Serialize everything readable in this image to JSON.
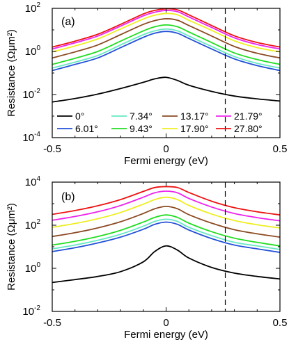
{
  "chart_data": [
    {
      "type": "line",
      "panel_label": "(a)",
      "xlabel": "Fermi energy (eV)",
      "ylabel": "Resistance (Ωμm²)",
      "xlim": [
        -0.5,
        0.5
      ],
      "ylim_log10": [
        -4,
        2
      ],
      "y_scale": "log",
      "x_ticks": [
        -0.5,
        0,
        0.5
      ],
      "x_tick_labels": [
        "-0.5",
        "0",
        "0.5"
      ],
      "y_ticks_log10": [
        -4,
        -2,
        0,
        2
      ],
      "y_tick_labels": [
        {
          "base": "10",
          "exp": "-4"
        },
        {
          "base": "10",
          "exp": "-2"
        },
        {
          "base": "10",
          "exp": "0"
        },
        {
          "base": "10",
          "exp": "2"
        }
      ],
      "reference_line": {
        "x": 0.26,
        "style": "dashed"
      },
      "legend_position": "lower-center",
      "x": [
        -0.5,
        -0.4,
        -0.3,
        -0.2,
        -0.1,
        -0.05,
        0,
        0.05,
        0.1,
        0.2,
        0.3,
        0.4,
        0.5
      ],
      "series": [
        {
          "name": "0°",
          "color": "#000000",
          "values": [
            0.0045,
            0.0065,
            0.0105,
            0.019,
            0.037,
            0.053,
            0.063,
            0.045,
            0.027,
            0.014,
            0.0085,
            0.0063,
            0.005
          ]
        },
        {
          "name": "6.01°",
          "color": "#2450d8",
          "values": [
            0.13,
            0.25,
            0.5,
            1.5,
            4.5,
            7.0,
            8.5,
            7.0,
            4.0,
            1.3,
            0.45,
            0.22,
            0.13
          ]
        },
        {
          "name": "7.34°",
          "color": "#66e8c0",
          "values": [
            0.17,
            0.32,
            0.65,
            2.0,
            6.0,
            9.0,
            11.0,
            9.0,
            5.2,
            1.7,
            0.58,
            0.28,
            0.17
          ]
        },
        {
          "name": "9.43°",
          "color": "#22dd22",
          "values": [
            0.25,
            0.48,
            1.0,
            3.0,
            9.0,
            14.0,
            17.0,
            14.0,
            8.0,
            2.6,
            0.85,
            0.42,
            0.25
          ]
        },
        {
          "name": "13.17°",
          "color": "#8b4a22",
          "values": [
            0.5,
            0.95,
            2.0,
            6.0,
            18.0,
            27.0,
            33.0,
            28.0,
            16.0,
            5.2,
            1.7,
            0.82,
            0.5
          ]
        },
        {
          "name": "17.90°",
          "color": "#eeee22",
          "values": [
            0.95,
            1.8,
            3.8,
            11.0,
            32.0,
            48.0,
            58.0,
            50.0,
            28.0,
            9.5,
            3.1,
            1.5,
            0.95
          ]
        },
        {
          "name": "21.79°",
          "color": "#ee22ee",
          "values": [
            1.3,
            2.5,
            5.2,
            15.0,
            45.0,
            66.0,
            80.0,
            70.0,
            40.0,
            13.0,
            4.3,
            2.1,
            1.3
          ]
        },
        {
          "name": "27.80°",
          "color": "#ee1111",
          "values": [
            1.6,
            3.0,
            6.3,
            18.0,
            55.0,
            80.0,
            95.0,
            85.0,
            50.0,
            16.0,
            5.3,
            2.6,
            1.6
          ]
        }
      ]
    },
    {
      "type": "line",
      "panel_label": "(b)",
      "xlabel": "Fermi energy (eV)",
      "ylabel": "Resistance (Ωμm²)",
      "xlim": [
        -0.5,
        0.5
      ],
      "ylim_log10": [
        -2,
        4
      ],
      "y_scale": "log",
      "x_ticks": [
        -0.5,
        0,
        0.5
      ],
      "x_tick_labels": [
        "-0.5",
        "0",
        "0.5"
      ],
      "y_ticks_log10": [
        -2,
        0,
        2,
        4
      ],
      "y_tick_labels": [
        {
          "base": "10",
          "exp": "-2"
        },
        {
          "base": "10",
          "exp": "0"
        },
        {
          "base": "10",
          "exp": "2"
        },
        {
          "base": "10",
          "exp": "4"
        }
      ],
      "reference_line": {
        "x": 0.26,
        "style": "dashed"
      },
      "x": [
        -0.5,
        -0.4,
        -0.3,
        -0.2,
        -0.1,
        -0.05,
        0,
        0.05,
        0.1,
        0.2,
        0.3,
        0.4,
        0.5
      ],
      "series": [
        {
          "name": "0°",
          "color": "#000000",
          "values": [
            0.22,
            0.3,
            0.42,
            0.7,
            2.0,
            6.0,
            11.0,
            7.0,
            3.0,
            1.1,
            0.6,
            0.42,
            0.32
          ]
        },
        {
          "name": "6.01°",
          "color": "#2450d8",
          "values": [
            6.0,
            9.0,
            15.0,
            28.0,
            65.0,
            110.0,
            140.0,
            110.0,
            60.0,
            24.0,
            12.0,
            8.0,
            5.5
          ]
        },
        {
          "name": "7.34°",
          "color": "#66e8c0",
          "values": [
            8.0,
            12.0,
            20.0,
            38.0,
            90.0,
            150.0,
            190.0,
            150.0,
            80.0,
            33.0,
            16.0,
            11.0,
            7.5
          ]
        },
        {
          "name": "9.43°",
          "color": "#22dd22",
          "values": [
            12.0,
            18.0,
            30.0,
            58.0,
            140.0,
            230.0,
            300.0,
            230.0,
            125.0,
            50.0,
            25.0,
            16.0,
            11.0
          ]
        },
        {
          "name": "13.17°",
          "color": "#8b4a22",
          "values": [
            30.0,
            45.0,
            75.0,
            145.0,
            350.0,
            580.0,
            750.0,
            580.0,
            310.0,
            125.0,
            62.0,
            40.0,
            28.0
          ]
        },
        {
          "name": "17.90°",
          "color": "#eeee22",
          "values": [
            80.0,
            120.0,
            200.0,
            390.0,
            950.0,
            1550.0,
            2000.0,
            1550.0,
            830.0,
            330.0,
            165.0,
            105.0,
            75.0
          ]
        },
        {
          "name": "21.79°",
          "color": "#ee22ee",
          "values": [
            170.0,
            255.0,
            420.0,
            820.0,
            2000.0,
            3200.0,
            3800.0,
            3200.0,
            1750.0,
            700.0,
            350.0,
            225.0,
            160.0
          ]
        },
        {
          "name": "27.80°",
          "color": "#ee1111",
          "values": [
            320.0,
            480.0,
            800.0,
            1550.0,
            3700.0,
            5600.0,
            6200.0,
            5600.0,
            3300.0,
            1300.0,
            650.0,
            420.0,
            300.0
          ]
        }
      ]
    }
  ]
}
